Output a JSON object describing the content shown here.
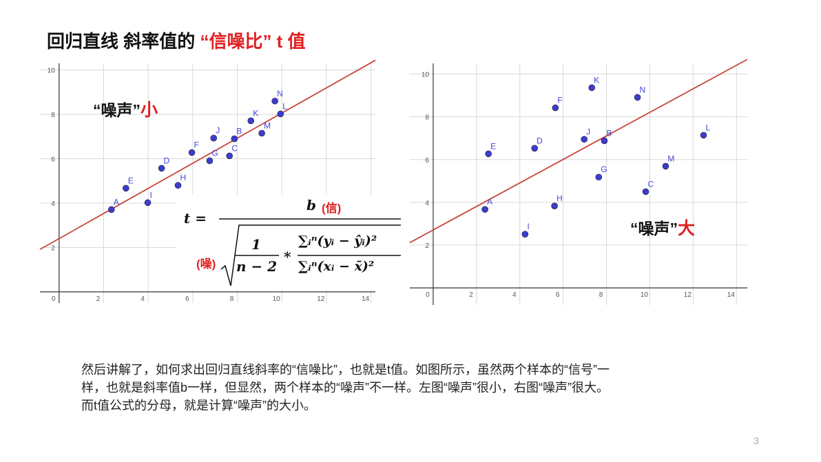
{
  "title": "回归直线 斜率值的 ",
  "title_emphasis": "“信噪比” t 值",
  "formula": {
    "lhs": "t =",
    "numerator": "b",
    "numerator_note": "(信)",
    "denominator_note": "(噪)",
    "frac_num": "1",
    "frac_den": "n − 2",
    "times": "*",
    "ratio_num": "∑ᵢⁿ(yᵢ − ŷᵢ)²",
    "ratio_den": "∑ᵢⁿ(xᵢ − x̄)²"
  },
  "paragraph": [
    "然后讲解了，如何求出回归直线斜率的“信噪比”，也就是t值。如图所示，虽然两个样本的“信号”一",
    "样，也就是斜率值b一样，但显然，两个样本的“噪声”不一样。左图“噪声”很小，右图“噪声”很大。",
    "而t值公式的分母，就是计算“噪声”的大小。"
  ],
  "page_number": "3",
  "chart_data": [
    {
      "type": "scatter",
      "annotation": "“噪声”",
      "annotation_emphasis": "小",
      "x": [
        2.35,
        3.0,
        3.98,
        4.6,
        5.34,
        5.96,
        6.76,
        6.94,
        7.65,
        7.87,
        8.61,
        9.1,
        9.69,
        9.94
      ],
      "values": [
        3.71,
        4.67,
        4.02,
        5.57,
        4.8,
        6.28,
        5.91,
        6.93,
        6.13,
        6.9,
        7.71,
        7.15,
        8.6,
        8.02
      ],
      "point_labels": [
        "A",
        "E",
        "I",
        "D",
        "H",
        "F",
        "G",
        "J",
        "C",
        "B",
        "K",
        "M",
        "N",
        "L"
      ],
      "color": "#3c3cd2",
      "label_color": "#4646dc",
      "trendline": {
        "slope": 0.566,
        "intercept": 2.4,
        "color": "#c8453c"
      },
      "xlim": [
        -0.86,
        14.2
      ],
      "ylim": [
        -0.5,
        10.3
      ],
      "xticks": [
        0,
        2,
        4,
        6,
        8,
        10,
        12,
        14
      ],
      "yticks": [
        2,
        4,
        6,
        8,
        10
      ],
      "grid": true
    },
    {
      "type": "scatter",
      "annotation": "“噪声”",
      "annotation_emphasis": "大",
      "x": [
        2.39,
        2.55,
        4.24,
        4.68,
        5.6,
        5.64,
        7.64,
        6.97,
        7.9,
        7.32,
        9.43,
        9.81,
        10.73,
        12.48
      ],
      "values": [
        3.67,
        6.27,
        2.51,
        6.53,
        3.83,
        8.42,
        5.18,
        6.95,
        6.88,
        9.36,
        8.91,
        4.5,
        5.69,
        7.14
      ],
      "point_labels": [
        "A",
        "E",
        "I",
        "D",
        "H",
        "F",
        "G",
        "J",
        "B",
        "K",
        "N",
        "C",
        "M",
        "L"
      ],
      "color": "#3c3cd2",
      "label_color": "#4646dc",
      "trendline": {
        "slope": 0.55,
        "intercept": 2.71,
        "color": "#c8453c"
      },
      "xlim": [
        -1.08,
        14.5
      ],
      "ylim": [
        -0.8,
        10.5
      ],
      "xticks": [
        0,
        2,
        4,
        6,
        8,
        10,
        12,
        14
      ],
      "yticks": [
        2,
        4,
        6,
        8,
        10
      ],
      "grid": true
    }
  ]
}
